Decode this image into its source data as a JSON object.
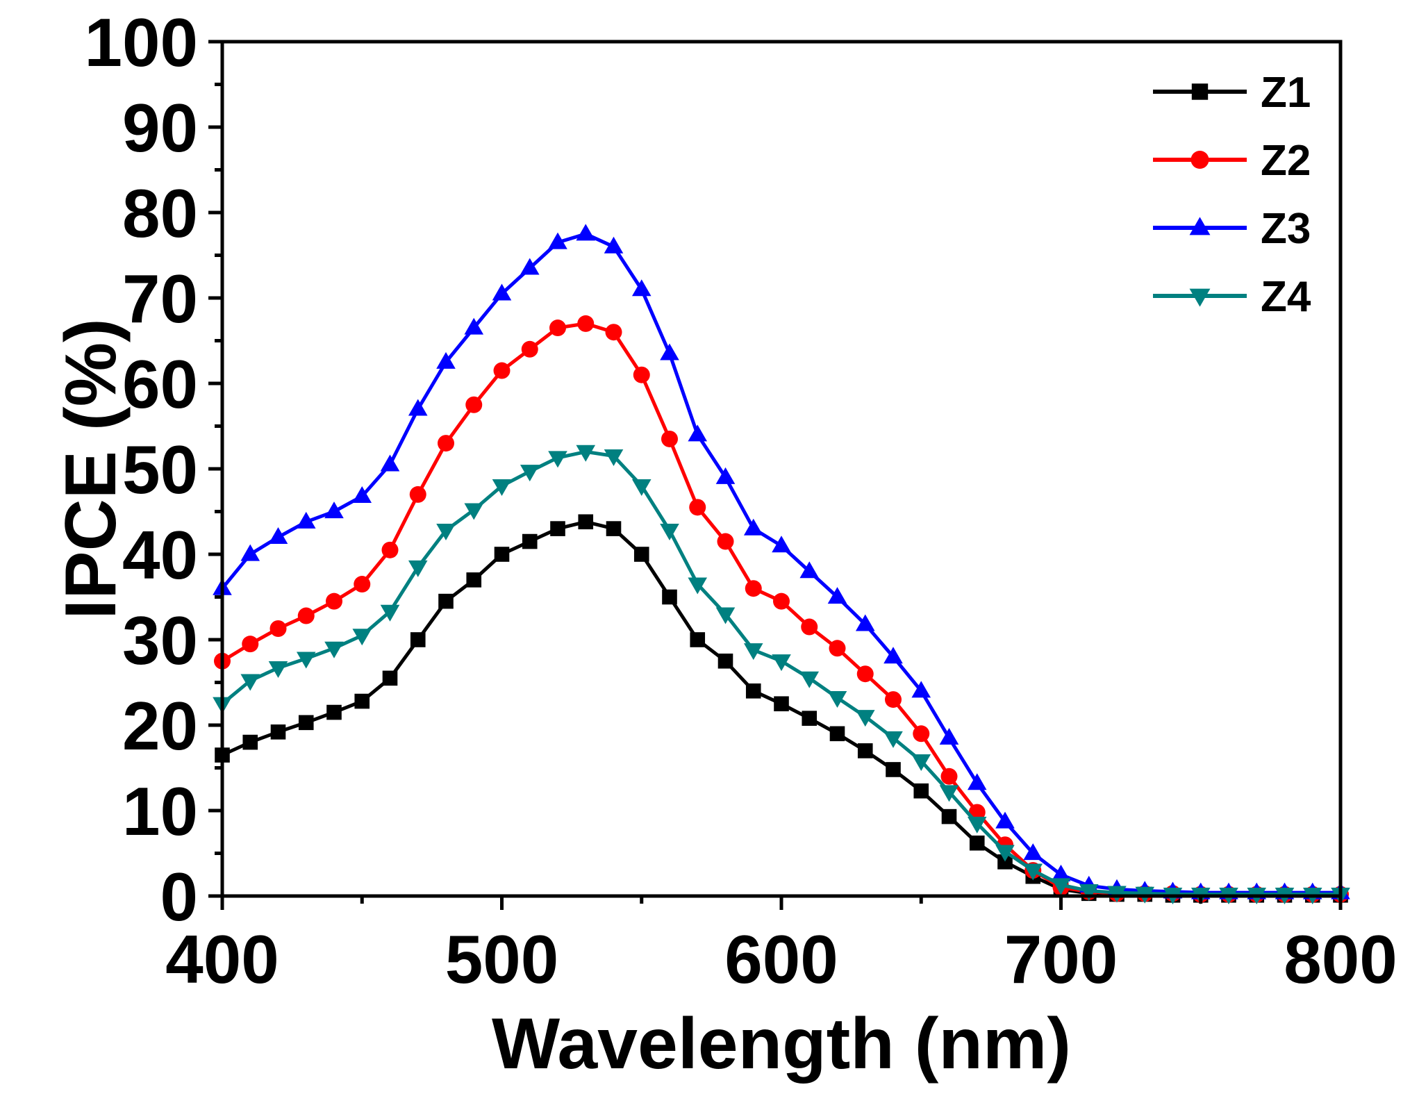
{
  "chart_data": {
    "type": "line",
    "title": "",
    "xlabel": "Wavelength (nm)",
    "ylabel": "IPCE (%)",
    "xlim": [
      400,
      800
    ],
    "ylim": [
      0,
      100
    ],
    "xticks": [
      400,
      500,
      600,
      700,
      800
    ],
    "yticks": [
      0,
      10,
      20,
      30,
      40,
      50,
      60,
      70,
      80,
      90,
      100
    ],
    "xtick_labels": [
      "400",
      "500",
      "600",
      "700",
      "800"
    ],
    "ytick_labels": [
      "0",
      "10",
      "20",
      "30",
      "40",
      "50",
      "60",
      "70",
      "80",
      "90",
      "100"
    ],
    "grid": false,
    "legend_position": "top-right",
    "x": [
      400,
      410,
      420,
      430,
      440,
      450,
      460,
      470,
      480,
      490,
      500,
      510,
      520,
      530,
      540,
      550,
      560,
      570,
      580,
      590,
      600,
      610,
      620,
      630,
      640,
      650,
      660,
      670,
      680,
      690,
      700,
      710,
      720,
      730,
      740,
      750,
      760,
      770,
      780,
      790,
      800
    ],
    "series": [
      {
        "name": "Z1",
        "color": "#000000",
        "marker": "square",
        "values": [
          16.5,
          18,
          19.2,
          20.3,
          21.5,
          22.8,
          25.5,
          30,
          34.5,
          37,
          40,
          41.5,
          43,
          43.8,
          43,
          40,
          35,
          30,
          27.5,
          24,
          22.5,
          20.8,
          19,
          17,
          14.8,
          12.3,
          9.3,
          6.2,
          4,
          2.3,
          0.8,
          0.3,
          0.2,
          0.2,
          0.1,
          0.1,
          0.1,
          0.1,
          0.1,
          0.1,
          0.1
        ]
      },
      {
        "name": "Z2",
        "color": "#ff0000",
        "marker": "circle",
        "values": [
          27.5,
          29.5,
          31.3,
          32.8,
          34.5,
          36.5,
          40.5,
          47,
          53,
          57.5,
          61.5,
          64,
          66.5,
          67,
          66,
          61,
          53.5,
          45.5,
          41.5,
          36,
          34.5,
          31.5,
          29,
          26,
          23,
          19,
          14,
          9.8,
          6,
          3,
          1,
          0.5,
          0.3,
          0.3,
          0.3,
          0.2,
          0.2,
          0.2,
          0.2,
          0.2,
          0.2
        ]
      },
      {
        "name": "Z3",
        "color": "#0000ff",
        "marker": "triangle-up",
        "values": [
          36,
          40,
          42,
          43.8,
          45,
          46.8,
          50.5,
          57,
          62.5,
          66.5,
          70.5,
          73.5,
          76.5,
          77.5,
          76,
          71,
          63.5,
          54,
          49,
          43,
          41,
          38,
          35,
          31.8,
          28,
          24,
          18.5,
          13.2,
          8.7,
          5,
          2.5,
          1.2,
          0.8,
          0.6,
          0.5,
          0.4,
          0.4,
          0.4,
          0.4,
          0.4,
          0.4
        ]
      },
      {
        "name": "Z4",
        "color": "#008080",
        "marker": "triangle-down",
        "values": [
          22.5,
          25.2,
          26.7,
          27.8,
          29,
          30.5,
          33.3,
          38.5,
          42.8,
          45.2,
          48,
          49.7,
          51.3,
          52,
          51.5,
          48,
          42.8,
          36.5,
          33,
          28.8,
          27.5,
          25.5,
          23.2,
          21,
          18.5,
          15.8,
          12.2,
          8.5,
          5.2,
          3,
          1.3,
          0.6,
          0.4,
          0.3,
          0.2,
          0.2,
          0.2,
          0.2,
          0.2,
          0.2,
          0.2
        ]
      }
    ]
  }
}
